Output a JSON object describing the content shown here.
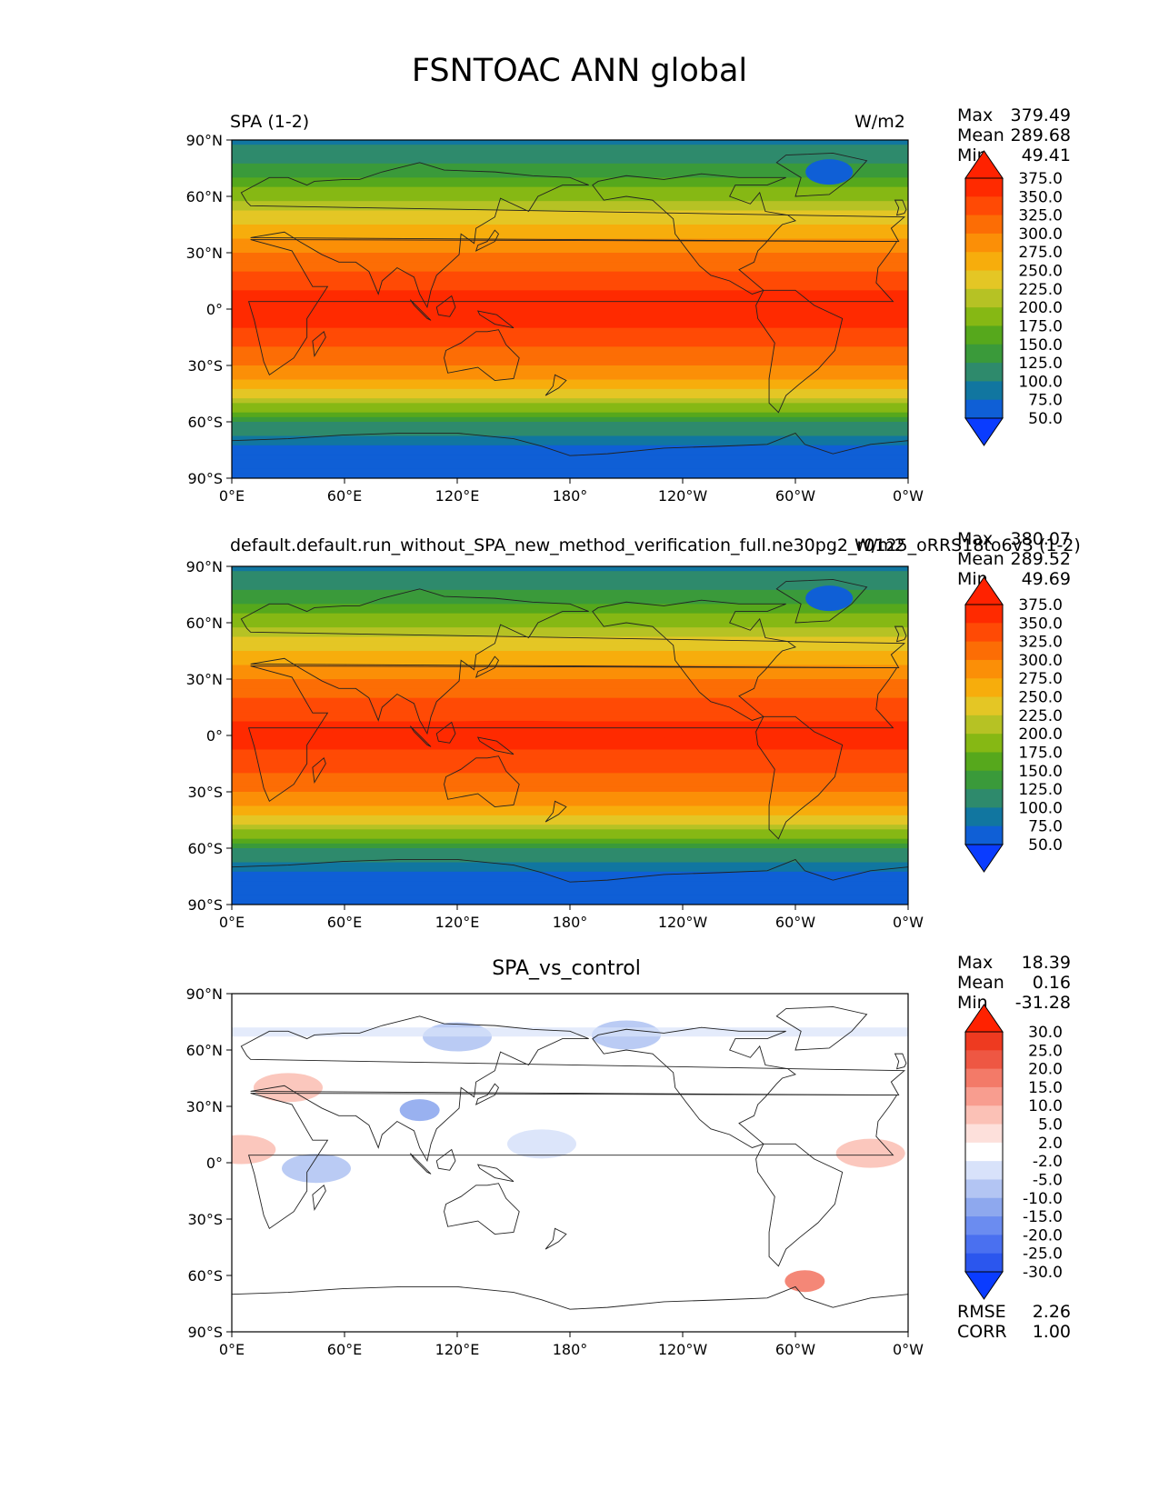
{
  "title": "FSNTOAC ANN global",
  "levels_main": [
    50.0,
    75.0,
    100.0,
    125.0,
    150.0,
    175.0,
    200.0,
    225.0,
    250.0,
    275.0,
    300.0,
    325.0,
    350.0,
    375.0
  ],
  "levels_diff": [
    -30.0,
    -25.0,
    -20.0,
    -15.0,
    -10.0,
    -5.0,
    -2.0,
    2.0,
    5.0,
    10.0,
    15.0,
    20.0,
    25.0,
    30.0
  ],
  "colors_main": [
    "#0a3cff",
    "#0f5fd6",
    "#1176a0",
    "#2e8a6c",
    "#3a9a3a",
    "#56a81c",
    "#86b814",
    "#b6c224",
    "#e4c625",
    "#f7ad0c",
    "#fb8f07",
    "#fc6d05",
    "#ff4a05",
    "#ff2a00",
    "#ff2200"
  ],
  "colors_diff": [
    "#0a3cff",
    "#2b56ee",
    "#4a70f0",
    "#6b8cf0",
    "#8ea8ee",
    "#b3c5f3",
    "#d8e2fa",
    "#ffffff",
    "#fde0db",
    "#fbc1b6",
    "#f89d8f",
    "#f37a68",
    "#ee5743",
    "#ee3a20",
    "#ff2200"
  ],
  "panels": [
    {
      "id": "test",
      "left_label": "SPA (1-2)",
      "right_label": "W/m2",
      "center_label": "",
      "stats": [
        {
          "k": "Max",
          "v": "379.49"
        },
        {
          "k": "Mean",
          "v": "289.68"
        },
        {
          "k": "Min",
          "v": "49.41"
        }
      ]
    },
    {
      "id": "reference",
      "left_label": "default.default.run_without_SPA_new_method_verification_full.ne30pg2_r0125_oRRS18to6v3 (1-2)",
      "right_label": "W/m2",
      "center_label": "",
      "stats": [
        {
          "k": "Max",
          "v": "380.07"
        },
        {
          "k": "Mean",
          "v": "289.52"
        },
        {
          "k": "Min",
          "v": "49.69"
        }
      ]
    },
    {
      "id": "diff",
      "left_label": "",
      "right_label": "",
      "center_label": "SPA_vs_control",
      "stats": [
        {
          "k": "Max",
          "v": "18.39"
        },
        {
          "k": "Mean",
          "v": "0.16"
        },
        {
          "k": "Min",
          "v": "-31.28"
        }
      ],
      "extra_stats": [
        {
          "k": "RMSE",
          "v": "2.26"
        },
        {
          "k": "CORR",
          "v": "1.00"
        }
      ]
    }
  ],
  "chart_data": [
    {
      "type": "heatmap",
      "title": "SPA (1-2)",
      "units": "W/m2",
      "x_ticks": [
        "0°E",
        "60°E",
        "120°E",
        "180°",
        "120°W",
        "60°W",
        "0°W"
      ],
      "y_ticks": [
        "90°N",
        "60°N",
        "30°N",
        "0°",
        "30°S",
        "60°S",
        "90°S"
      ],
      "xlim": [
        0,
        360
      ],
      "ylim": [
        -90,
        90
      ],
      "zonal_lat": [
        -90,
        -75,
        -60,
        -45,
        -30,
        -15,
        0,
        15,
        30,
        45,
        60,
        75,
        90
      ],
      "zonal_mean": [
        55,
        60,
        130,
        240,
        300,
        340,
        365,
        340,
        300,
        250,
        190,
        130,
        95
      ],
      "levels": [
        50.0,
        75.0,
        100.0,
        125.0,
        150.0,
        175.0,
        200.0,
        225.0,
        250.0,
        275.0,
        300.0,
        325.0,
        350.0,
        375.0
      ],
      "max": 379.49,
      "mean": 289.68,
      "min": 49.41
    },
    {
      "type": "heatmap",
      "title": "default.default.run_without_SPA_new_method_verification_full.ne30pg2_r0125_oRRS18to6v3 (1-2)",
      "units": "W/m2",
      "x_ticks": [
        "0°E",
        "60°E",
        "120°E",
        "180°",
        "120°W",
        "60°W",
        "0°W"
      ],
      "y_ticks": [
        "90°N",
        "60°N",
        "30°N",
        "0°",
        "30°S",
        "60°S",
        "90°S"
      ],
      "xlim": [
        0,
        360
      ],
      "ylim": [
        -90,
        90
      ],
      "zonal_lat": [
        -90,
        -75,
        -60,
        -45,
        -30,
        -15,
        0,
        15,
        30,
        45,
        60,
        75,
        90
      ],
      "zonal_mean": [
        55,
        60,
        130,
        240,
        300,
        340,
        362,
        340,
        300,
        250,
        190,
        130,
        95
      ],
      "levels": [
        50.0,
        75.0,
        100.0,
        125.0,
        150.0,
        175.0,
        200.0,
        225.0,
        250.0,
        275.0,
        300.0,
        325.0,
        350.0,
        375.0
      ],
      "max": 380.07,
      "mean": 289.52,
      "min": 49.69
    },
    {
      "type": "heatmap",
      "title": "SPA_vs_control",
      "x_ticks": [
        "0°E",
        "60°E",
        "120°E",
        "180°",
        "120°W",
        "60°W",
        "0°W"
      ],
      "y_ticks": [
        "90°N",
        "60°N",
        "30°N",
        "0°",
        "30°S",
        "60°S",
        "90°S"
      ],
      "xlim": [
        0,
        360
      ],
      "ylim": [
        -90,
        90
      ],
      "levels": [
        -30.0,
        -25.0,
        -20.0,
        -15.0,
        -10.0,
        -5.0,
        -2.0,
        2.0,
        5.0,
        10.0,
        15.0,
        20.0,
        25.0,
        30.0
      ],
      "anomalies": [
        {
          "lon": 120,
          "lat": 67,
          "value": -6
        },
        {
          "lon": 210,
          "lat": 68,
          "value": -8
        },
        {
          "lon": 100,
          "lat": 28,
          "value": -12
        },
        {
          "lon": 5,
          "lat": 7,
          "value": 8
        },
        {
          "lon": 340,
          "lat": 5,
          "value": 6
        },
        {
          "lon": 305,
          "lat": -63,
          "value": 18
        },
        {
          "lon": 45,
          "lat": -3,
          "value": -6
        },
        {
          "lon": 30,
          "lat": 40,
          "value": 5
        },
        {
          "lon": 165,
          "lat": 10,
          "value": -4
        }
      ],
      "max": 18.39,
      "mean": 0.16,
      "min": -31.28,
      "rmse": 2.26,
      "corr": 1.0
    }
  ]
}
